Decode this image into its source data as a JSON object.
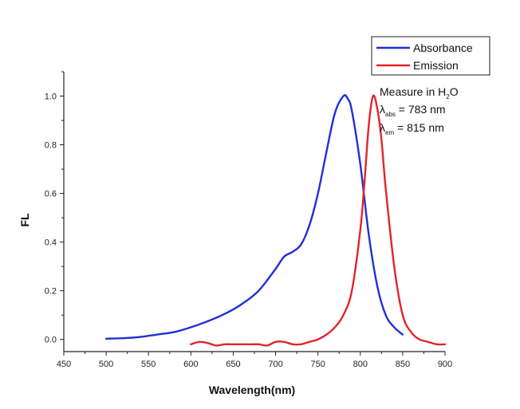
{
  "colors": {
    "absorbance": "#1f2fd6",
    "emission": "#e3242b",
    "axis": "#222222"
  },
  "chart_data": {
    "type": "line",
    "title": "",
    "xlabel": "Wavelength(nm)",
    "ylabel": "FL",
    "xlim": [
      450,
      900
    ],
    "ylim": [
      -0.05,
      1.1
    ],
    "xticks": [
      450,
      500,
      550,
      600,
      650,
      700,
      750,
      800,
      850,
      900
    ],
    "yticks": [
      0.0,
      0.2,
      0.4,
      0.6,
      0.8,
      1.0
    ],
    "ytick_labels": [
      "0.0",
      "0.2",
      "0.4",
      "0.6",
      "0.8",
      "1.0"
    ],
    "grid": false,
    "legend_position": "top-right",
    "series": [
      {
        "name": "Absorbance",
        "x": [
          500,
          520,
          540,
          560,
          580,
          600,
          620,
          640,
          660,
          680,
          700,
          710,
          720,
          730,
          740,
          750,
          760,
          770,
          780,
          785,
          790,
          800,
          810,
          820,
          830,
          840,
          850
        ],
        "y": [
          0.003,
          0.005,
          0.01,
          0.02,
          0.03,
          0.05,
          0.075,
          0.105,
          0.145,
          0.2,
          0.29,
          0.34,
          0.36,
          0.39,
          0.47,
          0.6,
          0.77,
          0.93,
          1.0,
          0.99,
          0.94,
          0.72,
          0.43,
          0.22,
          0.1,
          0.05,
          0.02
        ]
      },
      {
        "name": "Emission",
        "x": [
          600,
          610,
          620,
          630,
          640,
          650,
          660,
          670,
          680,
          690,
          700,
          710,
          720,
          730,
          740,
          750,
          760,
          770,
          780,
          790,
          800,
          805,
          810,
          815,
          820,
          825,
          830,
          840,
          850,
          860,
          870,
          880,
          890,
          900
        ],
        "y": [
          -0.02,
          -0.01,
          -0.015,
          -0.025,
          -0.02,
          -0.02,
          -0.02,
          -0.02,
          -0.02,
          -0.025,
          -0.01,
          -0.01,
          -0.02,
          -0.02,
          -0.01,
          0.0,
          0.02,
          0.05,
          0.1,
          0.2,
          0.45,
          0.65,
          0.88,
          1.0,
          0.95,
          0.82,
          0.62,
          0.3,
          0.1,
          0.03,
          0.0,
          -0.01,
          -0.02,
          -0.02
        ]
      }
    ],
    "annotations": [
      {
        "text": "Measure in H",
        "sub": "2",
        "tail": "O"
      },
      {
        "text": "λ",
        "sub": "abs",
        "tail": " = 783 nm"
      },
      {
        "text": "λ",
        "sub": "em",
        "tail": " = 815 nm"
      }
    ]
  }
}
